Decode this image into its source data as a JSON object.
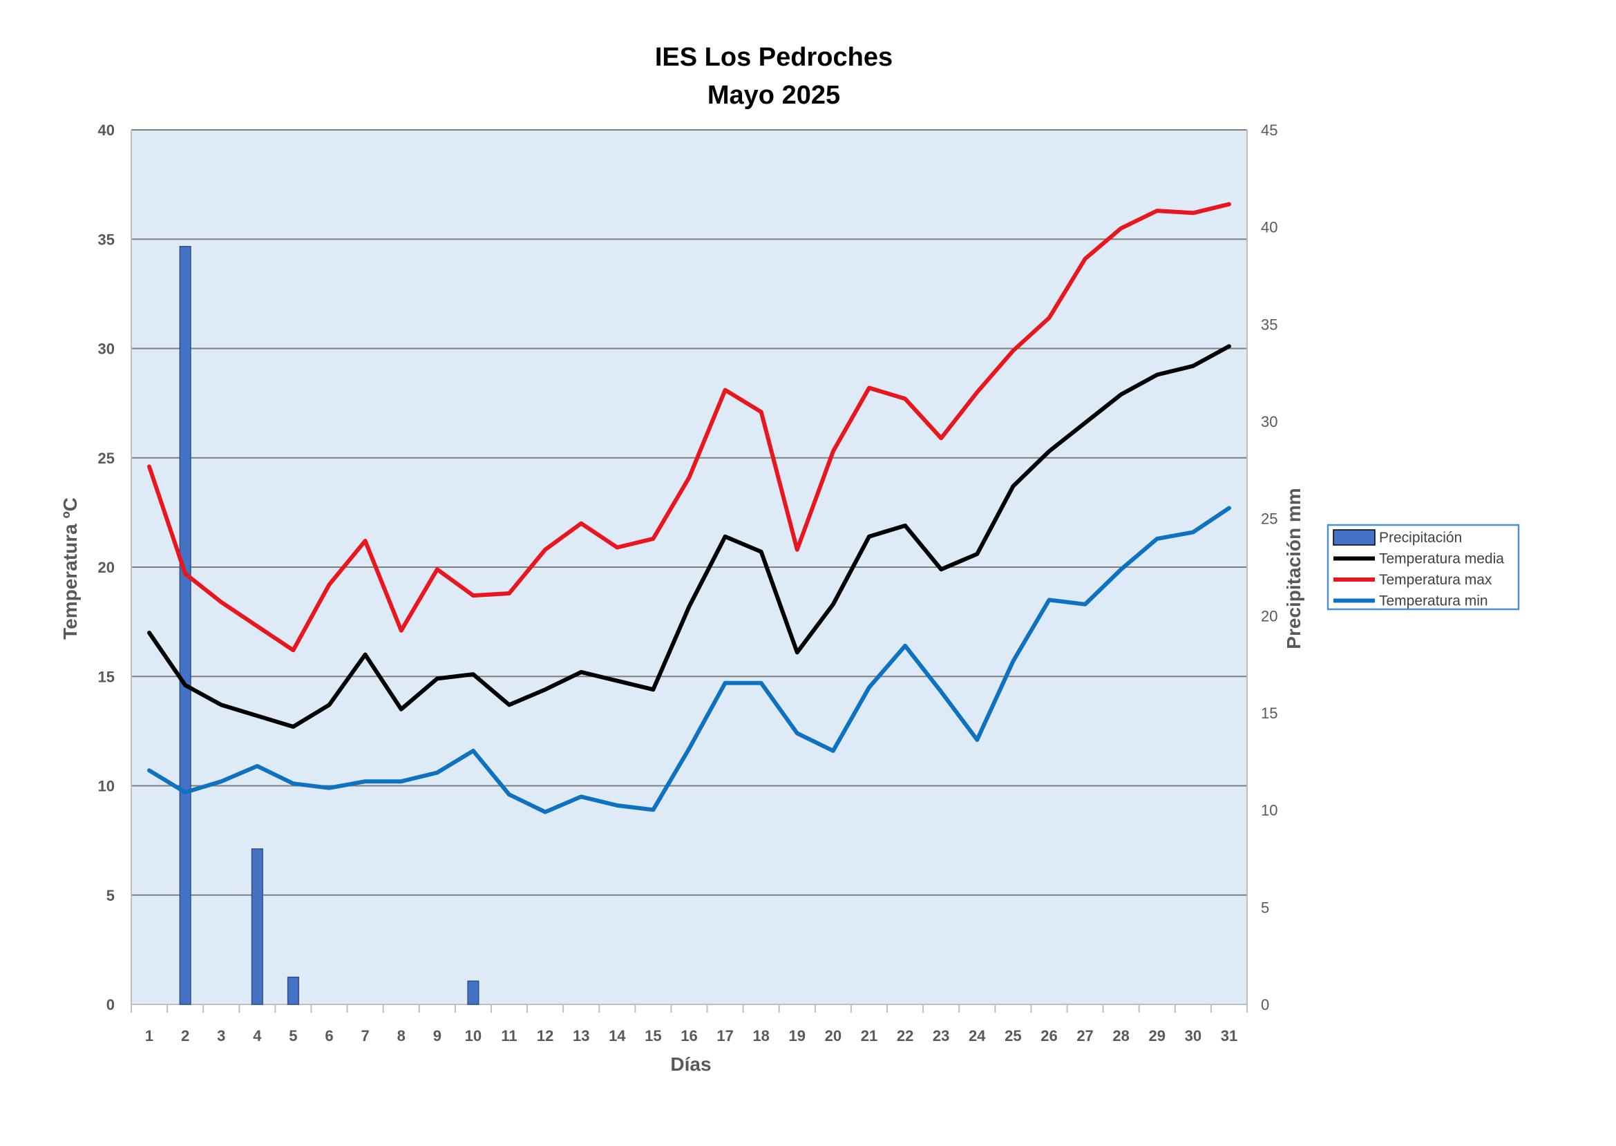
{
  "chart_data": {
    "type": "line",
    "title": [
      "IES Los Pedroches",
      "Mayo 2025"
    ],
    "xlabel": "Días",
    "ylabel": "Temperatura ºC",
    "ylabel_right": "Precipitación mm",
    "categories": [
      "1",
      "2",
      "3",
      "4",
      "5",
      "6",
      "7",
      "8",
      "9",
      "10",
      "11",
      "12",
      "13",
      "14",
      "15",
      "16",
      "17",
      "18",
      "19",
      "20",
      "21",
      "22",
      "23",
      "24",
      "25",
      "26",
      "27",
      "28",
      "29",
      "30",
      "31"
    ],
    "ylim": [
      0,
      40
    ],
    "yticks": [
      "0",
      "5",
      "10",
      "15",
      "20",
      "25",
      "30",
      "35",
      "40"
    ],
    "ylim_right": [
      0,
      45
    ],
    "yticks_right": [
      "0",
      "5",
      "10",
      "15",
      "20",
      "25",
      "30",
      "35",
      "40",
      "45"
    ],
    "grid": true,
    "plot_background": "#deeaf6",
    "legend_position": "right",
    "legend": [
      "Precipitación",
      "Temperatura media",
      "Temperatura max",
      "Temperatura min"
    ],
    "series": [
      {
        "name": "Precipitación",
        "kind": "bar",
        "axis": "right",
        "color": "#4472c4",
        "values": [
          0,
          39,
          0,
          8,
          1.4,
          0,
          0,
          0,
          0,
          1.2,
          0,
          0,
          0,
          0,
          0,
          0,
          0,
          0,
          0,
          0,
          0,
          0,
          0,
          0,
          0,
          0,
          0,
          0,
          0,
          0,
          0
        ]
      },
      {
        "name": "Temperatura media",
        "kind": "line",
        "axis": "left",
        "color": "#000000",
        "values": [
          17.0,
          14.6,
          13.7,
          13.2,
          12.7,
          13.7,
          16.0,
          13.5,
          14.9,
          15.1,
          13.7,
          14.4,
          15.2,
          14.8,
          14.4,
          18.2,
          21.4,
          20.7,
          16.1,
          18.3,
          21.4,
          21.9,
          19.9,
          20.6,
          23.7,
          25.3,
          26.6,
          27.9,
          28.8,
          29.2,
          30.1
        ]
      },
      {
        "name": "Temperatura max",
        "kind": "line",
        "axis": "left",
        "color": "#e8171f",
        "values": [
          24.6,
          19.7,
          18.4,
          17.3,
          16.2,
          19.2,
          21.2,
          17.1,
          19.9,
          18.7,
          18.8,
          20.8,
          22.0,
          20.9,
          21.3,
          24.1,
          28.1,
          27.1,
          20.8,
          25.3,
          28.2,
          27.7,
          25.9,
          28.0,
          29.9,
          31.4,
          34.1,
          35.5,
          36.3,
          36.2,
          36.6
        ]
      },
      {
        "name": "Temperatura min",
        "kind": "line",
        "axis": "left",
        "color": "#0e72c1",
        "values": [
          10.7,
          9.7,
          10.2,
          10.9,
          10.1,
          9.9,
          10.2,
          10.2,
          10.6,
          11.6,
          9.6,
          8.8,
          9.5,
          9.1,
          8.9,
          11.7,
          14.7,
          14.7,
          12.4,
          11.6,
          14.5,
          16.4,
          14.3,
          12.1,
          15.7,
          18.5,
          18.3,
          19.9,
          21.3,
          21.6,
          22.7
        ]
      }
    ]
  }
}
